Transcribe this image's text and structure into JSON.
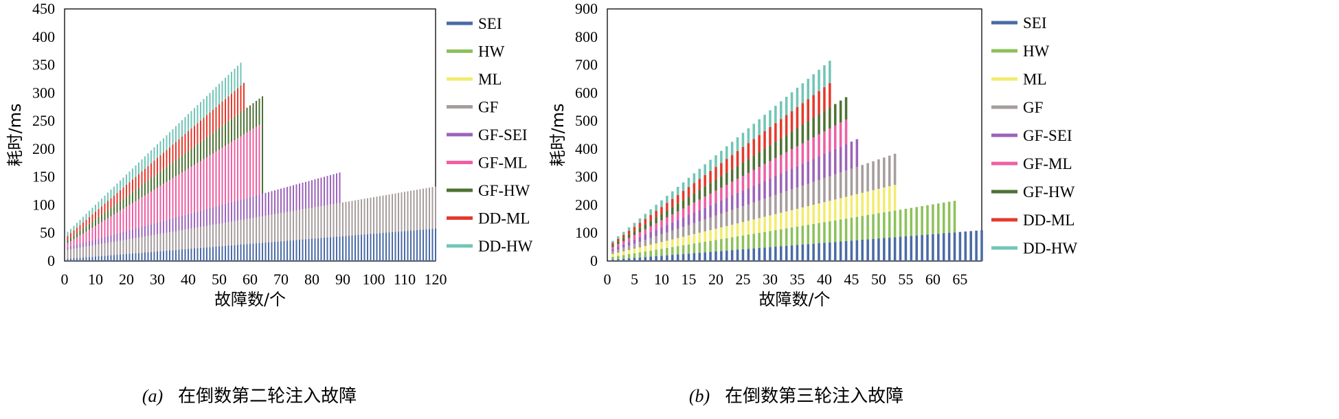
{
  "chart_data": [
    {
      "type": "bar",
      "stacked": true,
      "xlabel": "故障数/个",
      "ylabel": "耗时/ms",
      "xlim": [
        0,
        120
      ],
      "ylim": [
        0,
        450
      ],
      "xticks": [
        "0",
        "10",
        "20",
        "30",
        "40",
        "50",
        "60",
        "70",
        "80",
        "90",
        "100",
        "110",
        "120"
      ],
      "yticks": [
        "0",
        "50",
        "100",
        "150",
        "200",
        "250",
        "300",
        "350",
        "400",
        "450"
      ],
      "caption_tag": "(a)",
      "caption_text": "在倒数第二轮注入故障",
      "legend_position": "right",
      "series": [
        {
          "name": "SEI",
          "color": "#4a6aa5",
          "max_faults": 120,
          "top_start": 4,
          "top_end": 58
        },
        {
          "name": "HW",
          "color": "#8dc15a",
          "max_faults": 0,
          "top_start": 0,
          "top_end": 0
        },
        {
          "name": "ML",
          "color": "#f2ec6e",
          "max_faults": 0,
          "top_start": 0,
          "top_end": 0
        },
        {
          "name": "GF",
          "color": "#a79d9d",
          "max_faults": 120,
          "top_start": 20,
          "top_end": 133
        },
        {
          "name": "GF-SEI",
          "color": "#9b63b8",
          "max_faults": 89,
          "top_start": 25,
          "top_end": 158
        },
        {
          "name": "GF-ML",
          "color": "#ee5fa3",
          "max_faults": 63,
          "top_start": 32,
          "top_end": 243
        },
        {
          "name": "GF-HW",
          "color": "#4e7234",
          "max_faults": 64,
          "top_start": 38,
          "top_end": 294
        },
        {
          "name": "DD-ML",
          "color": "#e33a2c",
          "max_faults": 58,
          "top_start": 45,
          "top_end": 318
        },
        {
          "name": "DD-HW",
          "color": "#72c5b7",
          "max_faults": 57,
          "top_start": 52,
          "top_end": 354
        }
      ]
    },
    {
      "type": "bar",
      "stacked": true,
      "xlabel": "故障数/个",
      "ylabel": "耗时/ms",
      "xlim": [
        0,
        69
      ],
      "ylim": [
        0,
        900
      ],
      "xticks": [
        "0",
        "5",
        "10",
        "15",
        "20",
        "25",
        "30",
        "35",
        "40",
        "45",
        "50",
        "55",
        "60",
        "65"
      ],
      "yticks": [
        "0",
        "100",
        "200",
        "300",
        "400",
        "500",
        "600",
        "700",
        "800",
        "900"
      ],
      "caption_tag": "(b)",
      "caption_text": "在倒数第三轮注入故障",
      "legend_position": "right",
      "series": [
        {
          "name": "SEI",
          "color": "#4a6aa5",
          "max_faults": 69,
          "top_start": 5,
          "top_end": 110
        },
        {
          "name": "HW",
          "color": "#8dc15a",
          "max_faults": 64,
          "top_start": 15,
          "top_end": 215
        },
        {
          "name": "ML",
          "color": "#f2ec6e",
          "max_faults": 53,
          "top_start": 25,
          "top_end": 272
        },
        {
          "name": "GF",
          "color": "#a79d9d",
          "max_faults": 53,
          "top_start": 35,
          "top_end": 383
        },
        {
          "name": "GF-SEI",
          "color": "#9b63b8",
          "max_faults": 46,
          "top_start": 42,
          "top_end": 435
        },
        {
          "name": "GF-ML",
          "color": "#ee5fa3",
          "max_faults": 44,
          "top_start": 50,
          "top_end": 505
        },
        {
          "name": "GF-HW",
          "color": "#4e7234",
          "max_faults": 44,
          "top_start": 58,
          "top_end": 585
        },
        {
          "name": "DD-ML",
          "color": "#e33a2c",
          "max_faults": 41,
          "top_start": 65,
          "top_end": 635
        },
        {
          "name": "DD-HW",
          "color": "#72c5b7",
          "max_faults": 41,
          "top_start": 72,
          "top_end": 715
        }
      ]
    }
  ]
}
